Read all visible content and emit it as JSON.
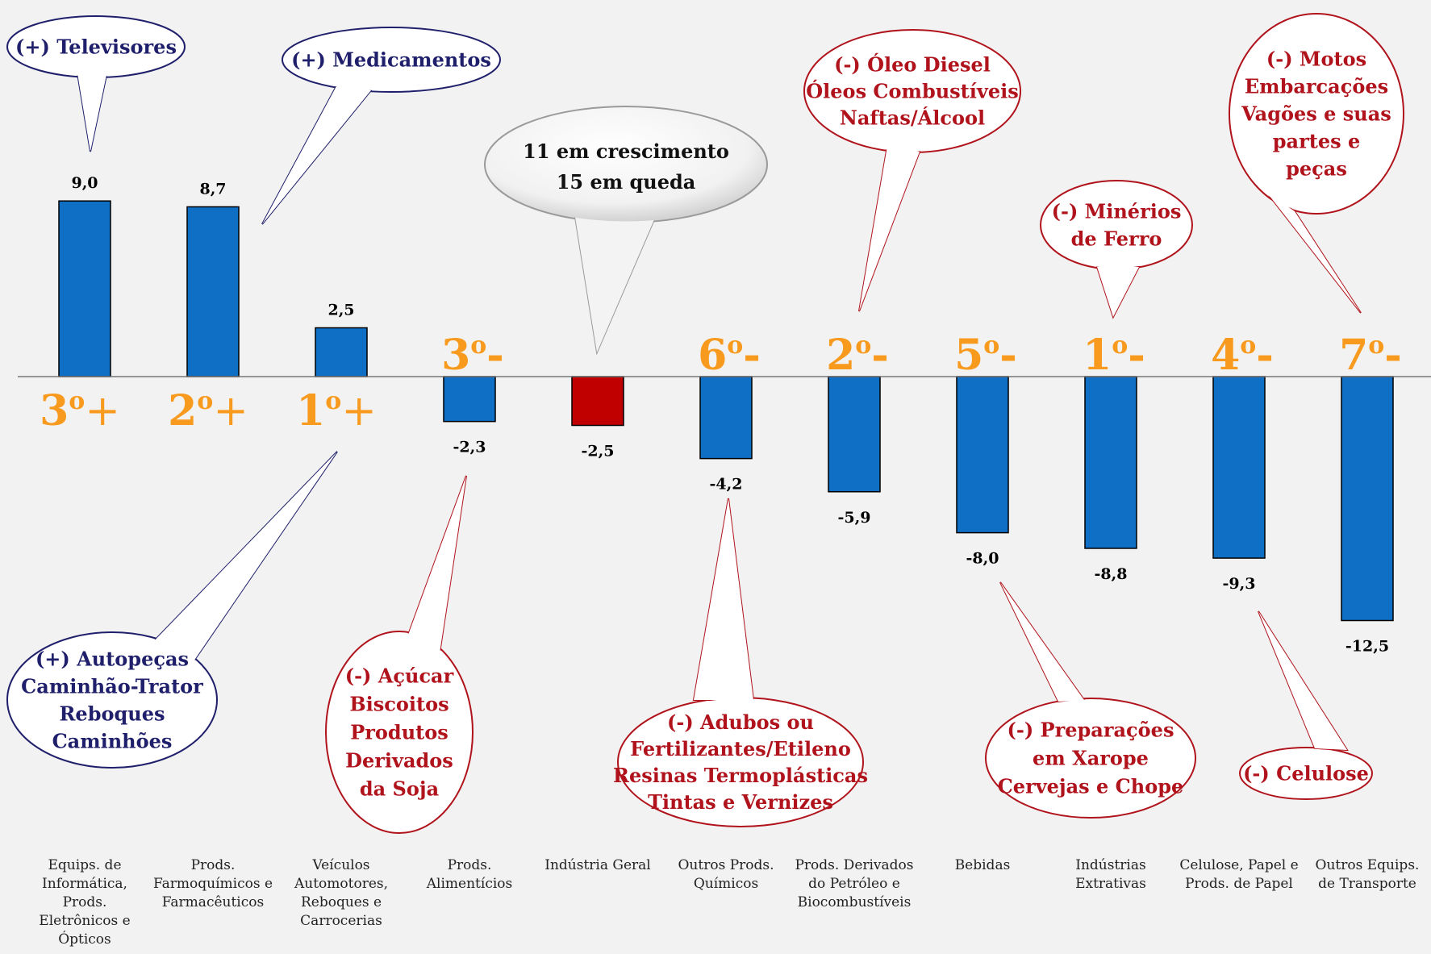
{
  "chart_data": {
    "type": "bar",
    "categories": [
      "Equips. de Informática, Prods. Eletrônicos e Ópticos",
      "Prods. Farmoquímicos e Farmacêuticos",
      "Veículos Automotores, Reboques e Carrocerias",
      "Prods. Alimentícios",
      "Indústria Geral",
      "Outros Prods. Químicos",
      "Prods. Derivados do Petróleo e Biocombustíveis",
      "Bebidas",
      "Indústrias Extrativas",
      "Celulose, Papel e Prods. de Papel",
      "Outros Equips. de Transporte"
    ],
    "category_lines": [
      [
        "Equips. de",
        "Informática,",
        "Prods.",
        "Eletrônicos e",
        "Ópticos"
      ],
      [
        "Prods.",
        "Farmoquímicos e",
        "Farmacêuticos"
      ],
      [
        "Veículos",
        "Automotores,",
        "Reboques e",
        "Carrocerias"
      ],
      [
        "Prods.",
        "Alimentícios"
      ],
      [
        "Indústria Geral"
      ],
      [
        "Outros Prods.",
        "Químicos"
      ],
      [
        "Prods. Derivados",
        "do Petróleo e",
        "Biocombustíveis"
      ],
      [
        "Bebidas"
      ],
      [
        "Indústrias",
        "Extrativas"
      ],
      [
        "Celulose, Papel e",
        "Prods. de Papel"
      ],
      [
        "Outros Equips.",
        "de Transporte"
      ]
    ],
    "values": [
      9.0,
      8.7,
      2.5,
      -2.3,
      -2.5,
      -4.2,
      -5.9,
      -8.0,
      -8.8,
      -9.3,
      -12.5
    ],
    "value_labels": [
      "9,0",
      "8,7",
      "2,5",
      "-2,3",
      "-2,5",
      "-4,2",
      "-5,9",
      "-8,0",
      "-8,8",
      "-9,3",
      "-12,5"
    ],
    "highlight_index": 4,
    "ranks": [
      {
        "base": "3",
        "ord": "o",
        "sign": "+"
      },
      {
        "base": "2",
        "ord": "o",
        "sign": "+"
      },
      {
        "base": "1",
        "ord": "o",
        "sign": "+"
      },
      {
        "base": "3",
        "ord": "o",
        "sign": "-"
      },
      null,
      {
        "base": "6",
        "ord": "o",
        "sign": "-"
      },
      {
        "base": "2",
        "ord": "o",
        "sign": "-"
      },
      {
        "base": "5",
        "ord": "o",
        "sign": "-"
      },
      {
        "base": "1",
        "ord": "o",
        "sign": "-"
      },
      {
        "base": "4",
        "ord": "o",
        "sign": "-"
      },
      {
        "base": "7",
        "ord": "o",
        "sign": "-"
      }
    ],
    "colors": {
      "bar": "#0e6fc5",
      "highlight_bar": "#c00000",
      "rank": "#f79a1e",
      "positive_callout": "#1f1f6b",
      "negative_callout": "#b0131b",
      "background": "#f2f2f2"
    }
  },
  "callouts": [
    {
      "id": "televisores",
      "tone": "positive",
      "lines": [
        "(+) Televisores"
      ]
    },
    {
      "id": "medicamentos",
      "tone": "positive",
      "lines": [
        "(+) Medicamentos"
      ]
    },
    {
      "id": "summary",
      "tone": "summary",
      "lines": [
        "11 em crescimento",
        "15 em queda"
      ]
    },
    {
      "id": "oleo",
      "tone": "negative",
      "lines": [
        "(-) Óleo Diesel",
        "Óleos Combustíveis",
        "Naftas/Álcool"
      ]
    },
    {
      "id": "motos",
      "tone": "negative",
      "lines": [
        "(-) Motos",
        "Embarcações",
        "Vagões e suas",
        "partes e",
        "peças"
      ]
    },
    {
      "id": "minerios",
      "tone": "negative",
      "lines": [
        "(-) Minérios",
        "de Ferro"
      ]
    },
    {
      "id": "autopecas",
      "tone": "positive",
      "lines": [
        "(+) Autopeças",
        "Caminhão-Trator",
        "Reboques",
        "Caminhões"
      ]
    },
    {
      "id": "acucar",
      "tone": "negative",
      "lines": [
        "(-) Açúcar",
        "Biscoitos",
        "Produtos",
        "Derivados",
        "da Soja"
      ]
    },
    {
      "id": "adubos",
      "tone": "negative",
      "lines": [
        "(-) Adubos ou",
        "Fertilizantes/Etileno",
        "Resinas Termoplásticas",
        "Tintas e Vernizes"
      ]
    },
    {
      "id": "xarope",
      "tone": "negative",
      "lines": [
        "(-) Preparações",
        "em Xarope",
        "Cervejas e Chope"
      ]
    },
    {
      "id": "celulose",
      "tone": "negative",
      "lines": [
        "(-) Celulose"
      ]
    }
  ]
}
